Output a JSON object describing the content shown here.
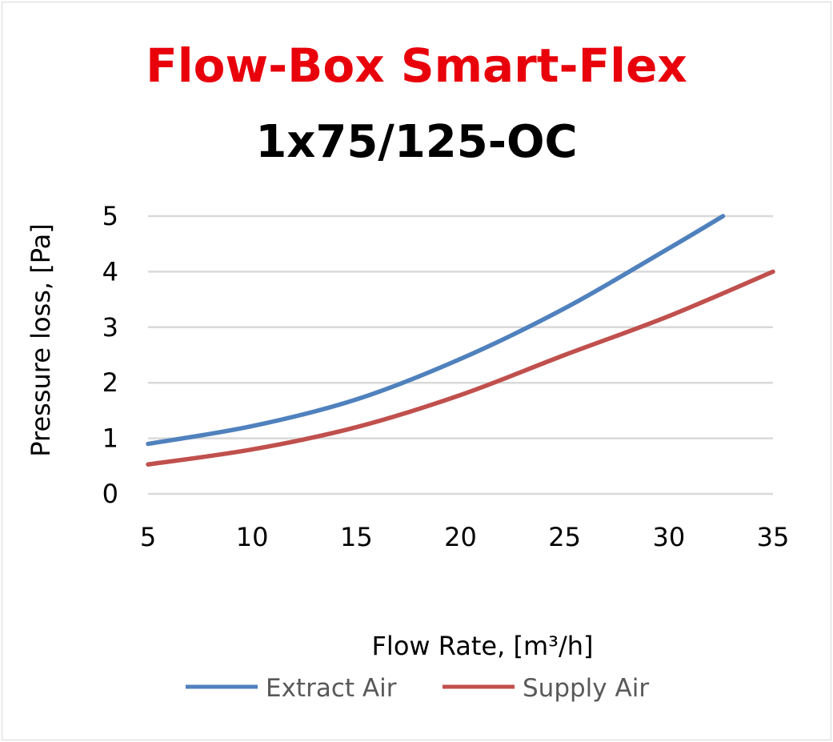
{
  "chart_data": {
    "type": "line",
    "title": "Flow-Box Smart-Flex",
    "subtitle": "1x75/125-OC",
    "xlabel": "Flow Rate, [m³/h]",
    "ylabel": "Pressure loss, [Pa]",
    "xlim": [
      5,
      35
    ],
    "ylim": [
      0,
      5
    ],
    "xticks": [
      "5",
      "10",
      "15",
      "20",
      "25",
      "30",
      "35"
    ],
    "yticks": [
      "0",
      "1",
      "2",
      "3",
      "4",
      "5"
    ],
    "grid": true,
    "legend_position": "bottom",
    "series": [
      {
        "name": "Extract Air",
        "color": "#4f81bd",
        "x": [
          5,
          10,
          15,
          20,
          25,
          30,
          32.6
        ],
        "y": [
          0.9,
          1.22,
          1.7,
          2.43,
          3.34,
          4.42,
          5.0
        ]
      },
      {
        "name": "Supply Air",
        "color": "#c0504d",
        "x": [
          5,
          10,
          15,
          20,
          25,
          30,
          35
        ],
        "y": [
          0.53,
          0.8,
          1.2,
          1.78,
          2.5,
          3.2,
          4.0
        ]
      }
    ]
  },
  "colors": {
    "title": "#e8000b",
    "grid": "#d9d9d9"
  }
}
